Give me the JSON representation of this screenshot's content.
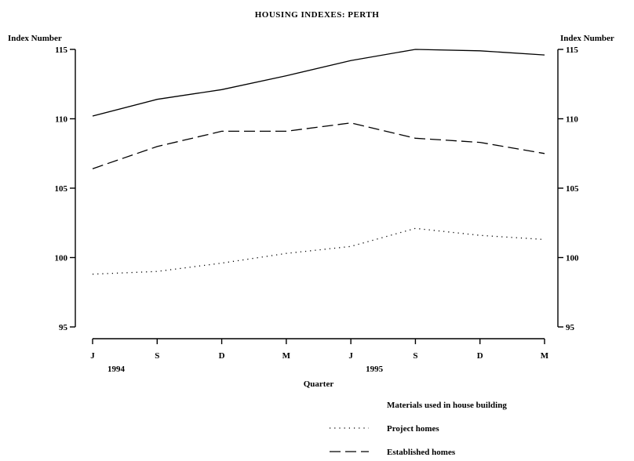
{
  "chart_data": {
    "type": "line",
    "title": "HOUSING INDEXES: PERTH",
    "xlabel": "Quarter",
    "ylabel_left": "Index Number",
    "ylabel_right": "Index Number",
    "ylim": [
      95,
      115
    ],
    "yticks": [
      95,
      100,
      105,
      110,
      115
    ],
    "categories": [
      "J",
      "S",
      "D",
      "M",
      "J",
      "S",
      "D",
      "M"
    ],
    "year_labels": [
      {
        "label": "1994",
        "index": 0
      },
      {
        "label": "1995",
        "index": 4
      }
    ],
    "series": [
      {
        "name": "Materials used in house building",
        "style": "solid",
        "values": [
          110.2,
          111.4,
          112.1,
          113.1,
          114.2,
          115.0,
          114.9,
          114.6
        ]
      },
      {
        "name": "Project homes",
        "style": "dotted",
        "values": [
          98.8,
          99.0,
          99.6,
          100.3,
          100.8,
          102.1,
          101.6,
          101.3
        ]
      },
      {
        "name": "Established homes",
        "style": "dashed",
        "values": [
          106.4,
          108.0,
          109.1,
          109.1,
          109.7,
          108.6,
          108.3,
          107.5
        ]
      }
    ],
    "legend_position": "bottom-right",
    "grid": false
  }
}
